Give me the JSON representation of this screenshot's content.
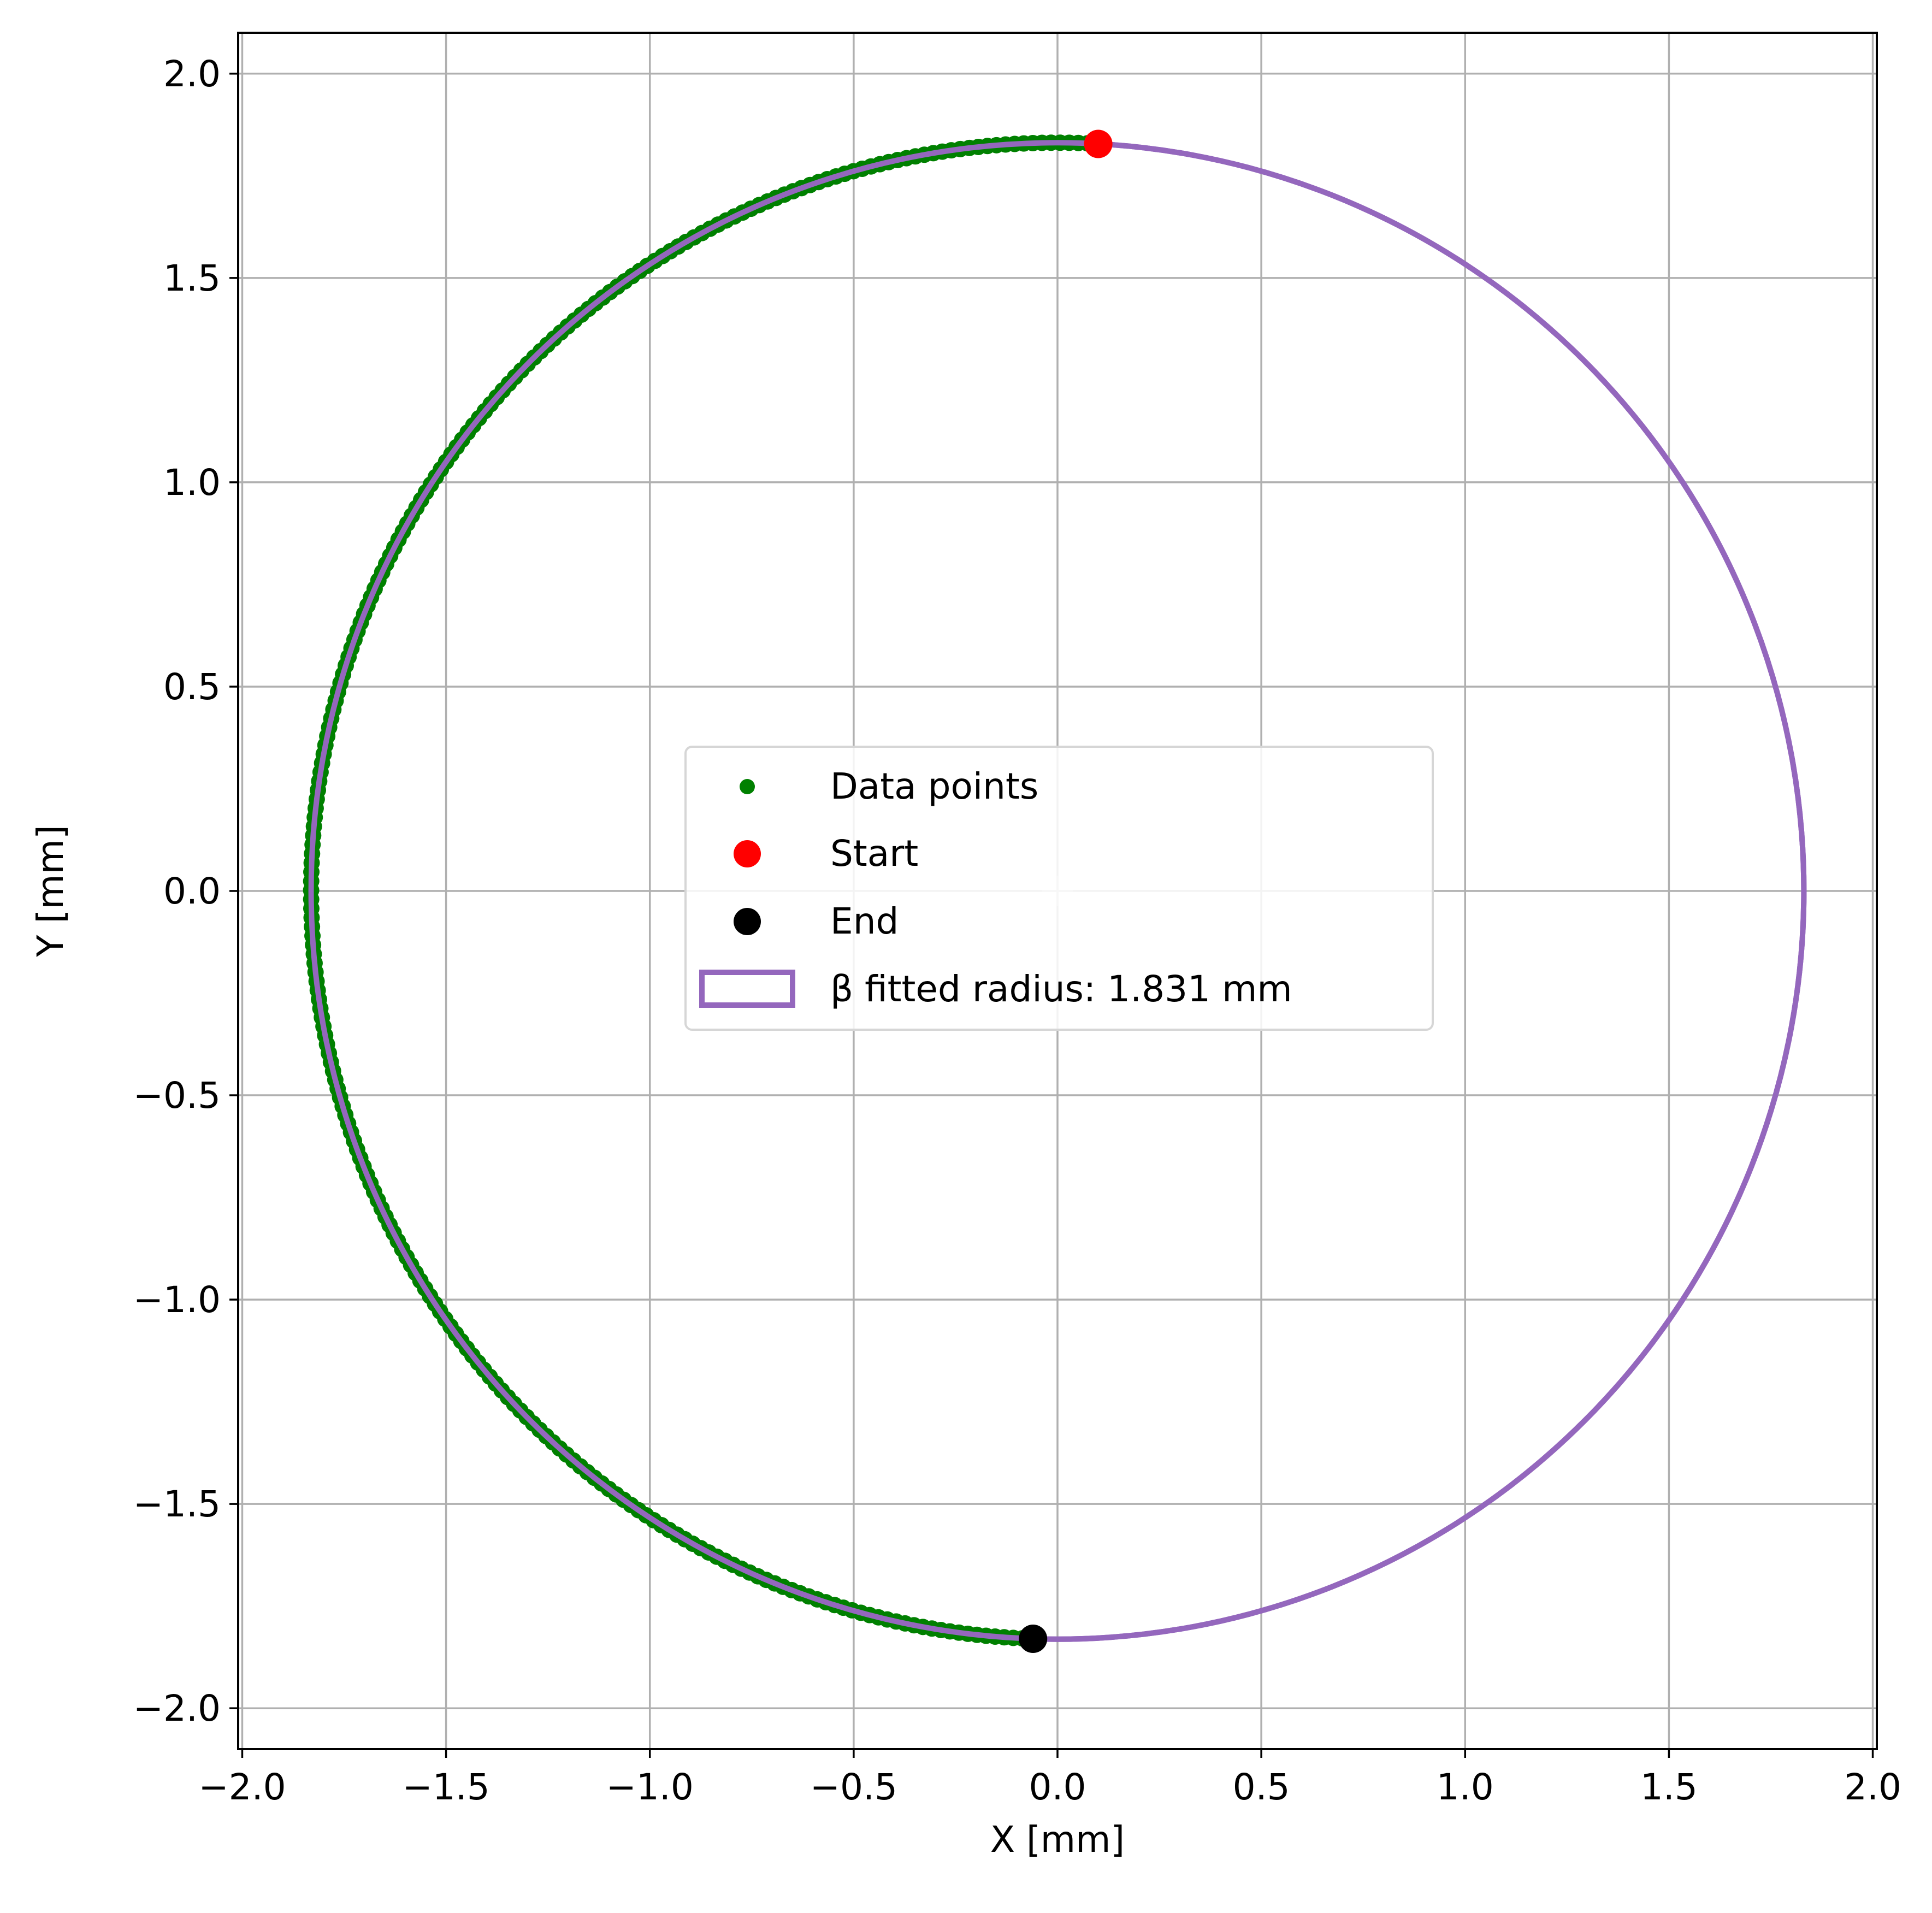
{
  "chart_data": {
    "type": "scatter",
    "title": "",
    "xlabel": "X [mm]",
    "ylabel": "Y [mm]",
    "xlim": [
      -2.01,
      2.01
    ],
    "ylim": [
      -2.1,
      2.1
    ],
    "xticks": [
      -2.0,
      -1.5,
      -1.0,
      -0.5,
      0.0,
      0.5,
      1.0,
      1.5,
      2.0
    ],
    "xtick_labels": [
      "−2.0",
      "−1.5",
      "−1.0",
      "−0.5",
      "0.0",
      "0.5",
      "1.0",
      "1.5",
      "2.0"
    ],
    "yticks": [
      2.0,
      1.5,
      1.0,
      0.5,
      0.0,
      -0.5,
      -1.0,
      -1.5,
      -2.0
    ],
    "ytick_labels": [
      "2.0",
      "1.5",
      "1.0",
      "0.5",
      "0.0",
      "−0.5",
      "−1.0",
      "−1.5",
      "−2.0"
    ],
    "grid": true,
    "legend_position": "center",
    "data_points": {
      "label": "Data points",
      "color": "#008000",
      "arc_start_deg": 87,
      "arc_end_deg": 268,
      "count": 260,
      "radius": 1.831
    },
    "start": {
      "label": "Start",
      "x": 0.1,
      "y": 1.828,
      "color": "#ff0000"
    },
    "end": {
      "label": "End",
      "x": -0.06,
      "y": -1.83,
      "color": "#000000"
    },
    "fit": {
      "label": "β fitted radius: 1.831 mm",
      "center": [
        0.0,
        0.0
      ],
      "radius": 1.831,
      "color": "#9467bd"
    },
    "center_marker": {
      "x": 0.0,
      "y": 0.0,
      "color": "#c8c8c8"
    }
  }
}
